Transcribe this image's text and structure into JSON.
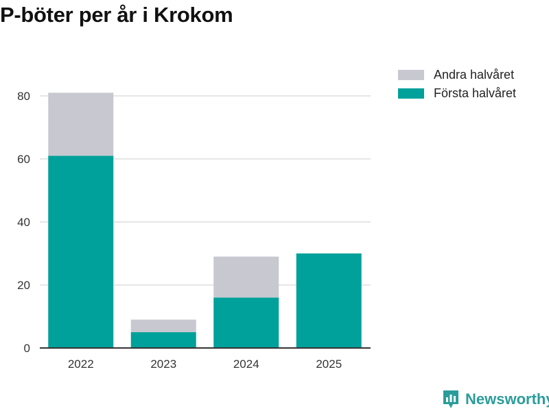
{
  "title": "P-böter per år i Krokom",
  "colors": {
    "first_half": "#00a19a",
    "second_half": "#c8c8d0",
    "grid": "#dddddd",
    "axis": "#333333",
    "brand": "#2a9d9b"
  },
  "legend": [
    {
      "label": "Andra halvåret",
      "color": "#c8c8d0"
    },
    {
      "label": "Första halvåret",
      "color": "#00a19a"
    }
  ],
  "brand": {
    "name": "Newsworthy",
    "icon": "newsworthy-logo-icon"
  },
  "chart_data": {
    "type": "bar",
    "stacked": true,
    "categories": [
      "2022",
      "2023",
      "2024",
      "2025"
    ],
    "series": [
      {
        "name": "Första halvåret",
        "values": [
          61,
          5,
          16,
          30
        ]
      },
      {
        "name": "Andra halvåret",
        "values": [
          20,
          4,
          13,
          0
        ]
      }
    ],
    "title": "P-böter per år i Krokom",
    "xlabel": "",
    "ylabel": "",
    "ylim": [
      0,
      80
    ],
    "yticks": [
      0,
      20,
      40,
      60,
      80
    ],
    "grid": true,
    "legend_position": "top-right"
  }
}
